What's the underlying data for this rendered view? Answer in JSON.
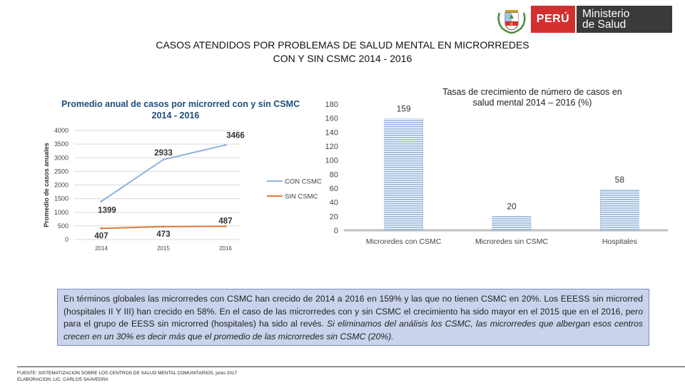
{
  "header": {
    "peru_label": "PERÚ",
    "ministry_line1": "Ministerio",
    "ministry_line2": "de Salud",
    "crest_icon": "peru-coat-of-arms-icon"
  },
  "main_title": {
    "line1": "CASOS ATENDIDOS  POR PROBLEMAS DE SALUD MENTAL EN MICRORREDES",
    "line2": "CON Y SIN CSMC 2014 - 2016"
  },
  "chart_data": [
    {
      "type": "line",
      "title_line1": "Promedio anual de casos por microrred con y sin CSMC",
      "title_line2": "2014 - 2016",
      "ylabel": "Promedio de casos anuales",
      "xlabel": "",
      "x": [
        "2014",
        "2015",
        "2016"
      ],
      "ylim": [
        0,
        4000
      ],
      "yticks": [
        "0",
        "500",
        "1000",
        "1500",
        "2000",
        "2500",
        "3000",
        "3500",
        "4000"
      ],
      "grid": true,
      "legend": "right",
      "series": [
        {
          "name": "CON CSMC",
          "values": [
            1399,
            2933,
            3466
          ],
          "labels": [
            "1399",
            "2933",
            "3466"
          ],
          "color": "#8fb3d9"
        },
        {
          "name": "SIN CSMC",
          "values": [
            407,
            473,
            487
          ],
          "labels": [
            "407",
            "473",
            "487"
          ],
          "color": "#e07b39"
        }
      ]
    },
    {
      "type": "bar",
      "title_line1": "Tasas de crecimiento de número de casos en",
      "title_line2": "salud mental 2014 – 2016 (%)",
      "categories": [
        "Microredes con CSMC",
        "Microredes sin CSMC",
        "Hospitales"
      ],
      "values": [
        159,
        20,
        58
      ],
      "labels": [
        "159",
        "20",
        "58"
      ],
      "ylim": [
        0,
        180
      ],
      "yticks": [
        "0",
        "20",
        "40",
        "60",
        "80",
        "100",
        "120",
        "140",
        "160",
        "180"
      ],
      "grid": false,
      "color": "#8fb3d9"
    }
  ],
  "summary": {
    "part1": "En términos globales las microrredes con CSMC han crecido  de 2014 a 2016 en 159% y las que no tienen CSMC en 20%. Los EEESS sin microrred (hospitales II Y III) han crecido en 58%. En el caso de las microrredes con y sin CSMC el crecimiento ha sido mayor en el 2015 que en el 2016, pero para el grupo de EESS sin microrred (hospitales) ha sido al revés. ",
    "part2": "Si eliminamos del análisis los CSMC, las microrredes que albergan esos centros crecen en un 30% es decir más que el promedio de las microrredes sin CSMC (20%)."
  },
  "footer": {
    "source": "FUENTE: SISTEMATIZACION SOBRE LOS CENTROS DE SALUD MENTAL COMUNITARIOS, junio 2017",
    "author": "ELABORACION: LIC. CARLOS SAAVEDRA"
  }
}
